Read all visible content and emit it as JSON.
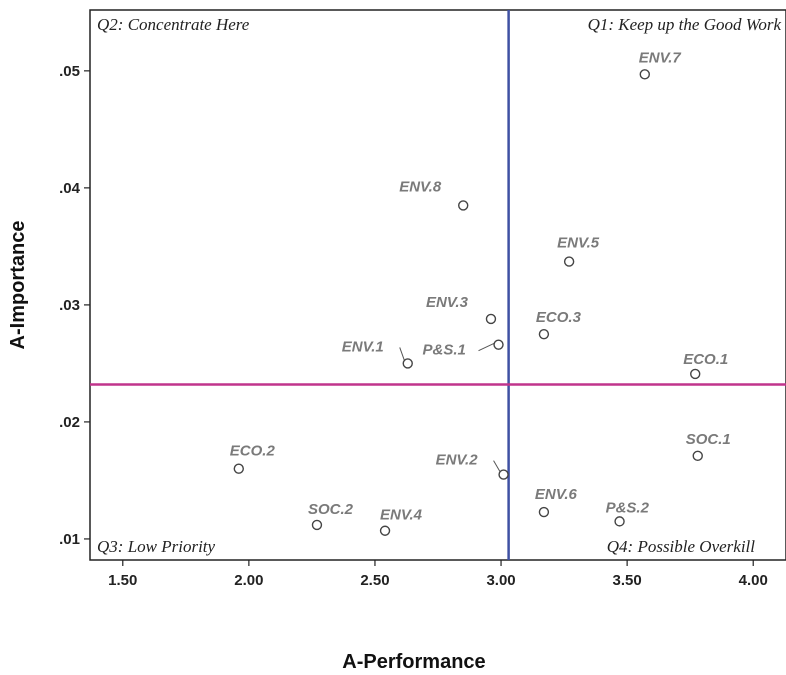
{
  "chart_data": {
    "type": "scatter",
    "xlabel": "A-Performance",
    "ylabel": "A-Importance",
    "xlim": [
      1.37,
      4.13
    ],
    "ylim": [
      0.0082,
      0.0552
    ],
    "xticks": [
      1.5,
      2.0,
      2.5,
      3.0,
      3.5,
      4.0
    ],
    "xtick_labels": [
      "1.50",
      "2.00",
      "2.50",
      "3.00",
      "3.50",
      "4.00"
    ],
    "yticks": [
      0.01,
      0.02,
      0.03,
      0.04,
      0.05
    ],
    "ytick_labels": [
      ".01",
      ".02",
      ".03",
      ".04",
      ".05"
    ],
    "grid": false,
    "reference_lines": {
      "x_mean": 3.03,
      "y_mean": 0.0232,
      "x_color": "#3f51a3",
      "y_color": "#c0348c"
    },
    "quadrants": {
      "q1": "Q1: Keep up the Good Work",
      "q2": "Q2: Concentrate Here",
      "q3": "Q3: Low Priority",
      "q4": "Q4: Possible Overkill"
    },
    "points": [
      {
        "label": "ENV.7",
        "x": 3.57,
        "y": 0.0497
      },
      {
        "label": "ENV.8",
        "x": 2.85,
        "y": 0.0385
      },
      {
        "label": "ENV.5",
        "x": 3.27,
        "y": 0.0337
      },
      {
        "label": "ENV.3",
        "x": 2.96,
        "y": 0.0288
      },
      {
        "label": "ECO.3",
        "x": 3.17,
        "y": 0.0275
      },
      {
        "label": "P&S.1",
        "x": 2.99,
        "y": 0.0266
      },
      {
        "label": "ENV.1",
        "x": 2.63,
        "y": 0.025
      },
      {
        "label": "ECO.1",
        "x": 3.77,
        "y": 0.0241
      },
      {
        "label": "SOC.1",
        "x": 3.78,
        "y": 0.0171
      },
      {
        "label": "ECO.2",
        "x": 1.96,
        "y": 0.016
      },
      {
        "label": "ENV.2",
        "x": 3.01,
        "y": 0.0155
      },
      {
        "label": "ENV.6",
        "x": 3.17,
        "y": 0.0123
      },
      {
        "label": "P&S.2",
        "x": 3.47,
        "y": 0.0115
      },
      {
        "label": "SOC.2",
        "x": 2.27,
        "y": 0.0112
      },
      {
        "label": "ENV.4",
        "x": 2.54,
        "y": 0.0107
      }
    ]
  }
}
